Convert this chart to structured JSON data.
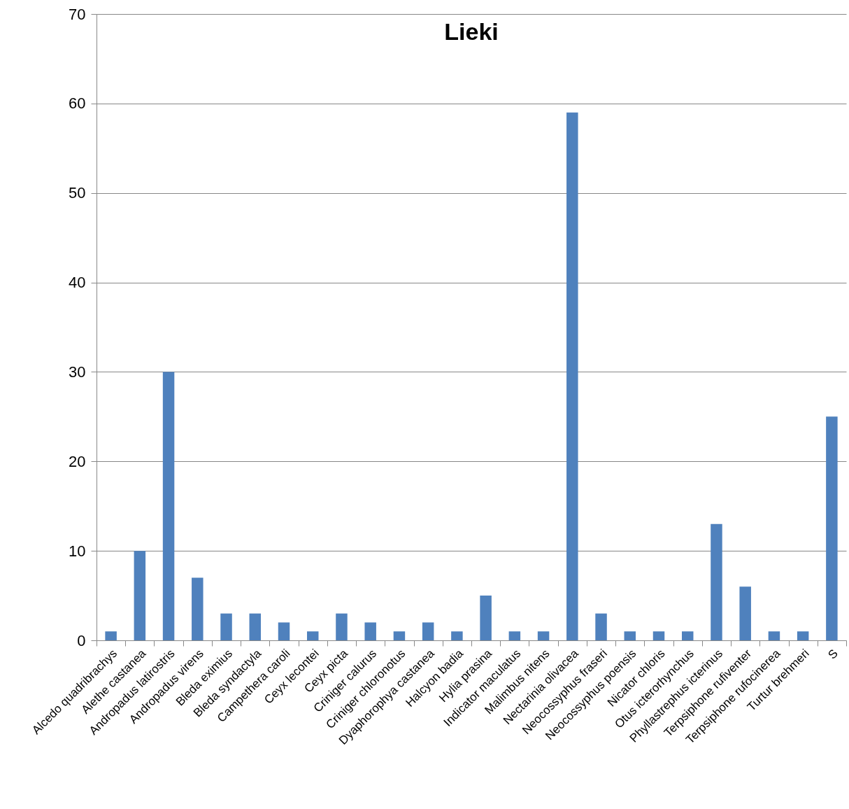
{
  "chart_data": {
    "type": "bar",
    "title": "Lieki",
    "categories": [
      "Alcedo quadribrachys",
      "Alethe castanea",
      "Andropadus latirostris",
      "Andropadus virens",
      "Bleda eximius",
      "Bleda syndactyla",
      "Campethera caroli",
      "Ceyx lecontei",
      "Ceyx picta",
      "Criniger calurus",
      "Criniger chloronotus",
      "Dyaphorophya castanea",
      "Halcyon badia",
      "Hylia prasina",
      "Indicator maculatus",
      "Malimbus nitens",
      "Nectarinia olivacea",
      "Neocossyphus fraseri",
      "Neocossyphus poensis",
      "Nicator chloris",
      "Otus icterorhynchus",
      "Phyllastrephus icterinus",
      "Terpsiphone rufiventer",
      "Terpsiphone rufocinerea",
      "Turtur brehmeri",
      "S"
    ],
    "values": [
      1,
      10,
      30,
      7,
      3,
      3,
      2,
      1,
      3,
      2,
      1,
      2,
      1,
      5,
      1,
      1,
      59,
      3,
      1,
      1,
      1,
      13,
      6,
      1,
      1,
      25
    ],
    "color": "#4f81bd",
    "ylim": [
      0,
      70
    ],
    "yticks": [
      0,
      10,
      20,
      30,
      40,
      50,
      60,
      70
    ],
    "grid": "y"
  }
}
